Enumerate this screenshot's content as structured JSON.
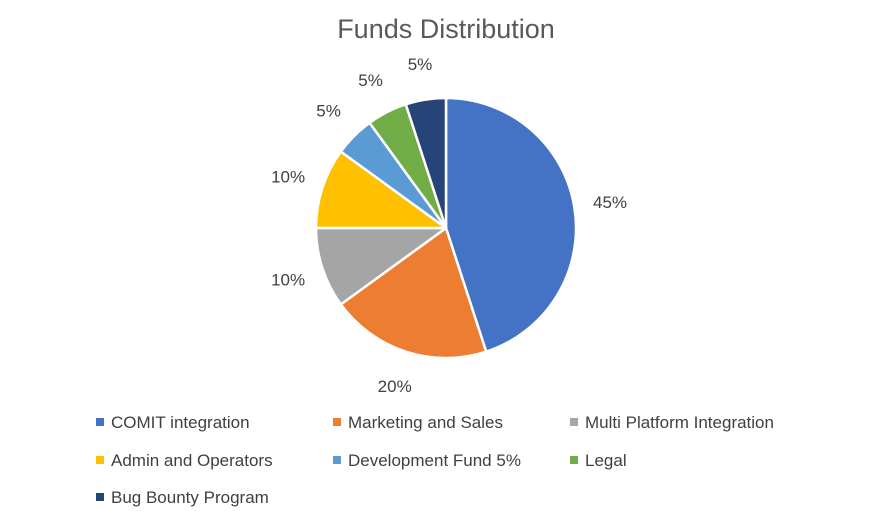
{
  "chart_data": {
    "type": "pie",
    "title": "Funds Distribution",
    "categories": [
      "COMIT integration",
      "Marketing and Sales",
      "Multi Platform Integration",
      "Admin and Operators",
      "Development Fund 5%",
      "Legal",
      "Bug Bounty Program"
    ],
    "values": [
      45,
      20,
      10,
      10,
      5,
      5,
      5
    ],
    "data_labels": [
      "45%",
      "20%",
      "10%",
      "10%",
      "5%",
      "5%",
      "5%"
    ],
    "colors": [
      "#4472C4",
      "#ED7D31",
      "#A5A5A5",
      "#FFC000",
      "#5B9BD5",
      "#70AD47",
      "#264478"
    ],
    "legend_position": "bottom"
  }
}
